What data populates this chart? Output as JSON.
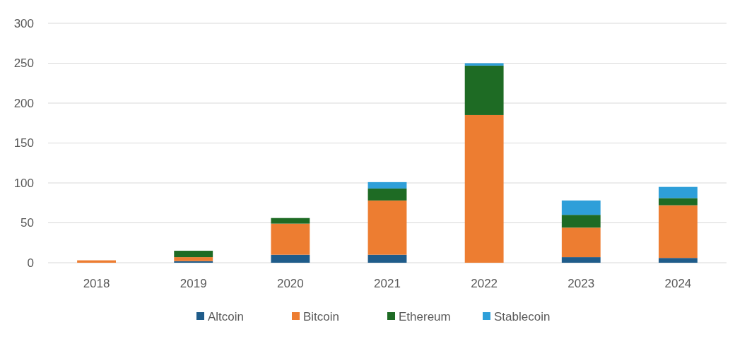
{
  "chart_data": {
    "type": "bar",
    "stacked": true,
    "categories": [
      "2018",
      "2019",
      "2020",
      "2021",
      "2022",
      "2023",
      "2024"
    ],
    "series": [
      {
        "name": "Altcoin",
        "color": "#1f5c8a",
        "values": [
          0,
          2,
          10,
          10,
          0,
          7,
          6
        ]
      },
      {
        "name": "Bitcoin",
        "color": "#ed7d31",
        "values": [
          3,
          5,
          39,
          68,
          185,
          37,
          66
        ]
      },
      {
        "name": "Ethereum",
        "color": "#1e6b24",
        "values": [
          0,
          8,
          7,
          15,
          62,
          16,
          9
        ]
      },
      {
        "name": "Stablecoin",
        "color": "#2e9fd9",
        "values": [
          0,
          0,
          0,
          8,
          3,
          18,
          14
        ]
      }
    ],
    "ylim": [
      0,
      300
    ],
    "yticks": [
      0,
      50,
      100,
      150,
      200,
      250,
      300
    ],
    "grid": "y",
    "legend": "bottom"
  }
}
